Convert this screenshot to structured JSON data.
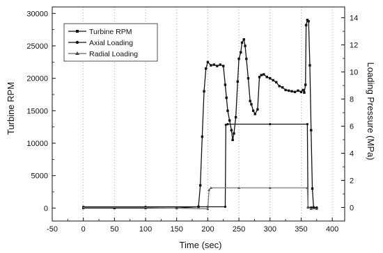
{
  "chart_data": {
    "type": "line",
    "title": "",
    "xlabel": "Time (sec)",
    "ylabel": "Turbine RPM",
    "y2label": "Loading Pressure (MPa)",
    "xlim": [
      -50,
      420
    ],
    "ylim": [
      -2000,
      31000
    ],
    "y2lim": [
      -1.0,
      14.8
    ],
    "xticks": [
      -50,
      0,
      50,
      100,
      150,
      200,
      250,
      300,
      350,
      400
    ],
    "yticks": [
      0,
      5000,
      10000,
      15000,
      20000,
      25000,
      30000
    ],
    "y2ticks": [
      0,
      2,
      4,
      6,
      8,
      10,
      12,
      14
    ],
    "grid": "vertical dotted",
    "legend_position": "top-left",
    "series": [
      {
        "name": "Turbine RPM",
        "axis": "left",
        "marker": "square",
        "x": [
          0,
          50,
          100,
          150,
          185,
          188,
          191,
          194,
          197,
          200,
          205,
          210,
          215,
          220,
          225,
          228,
          230,
          232,
          235,
          238,
          240,
          242,
          245,
          248,
          250,
          253,
          255,
          258,
          260,
          262,
          265,
          268,
          270,
          273,
          276,
          280,
          283,
          286,
          290,
          295,
          300,
          305,
          310,
          315,
          320,
          325,
          330,
          335,
          340,
          345,
          350,
          353,
          355,
          357,
          358,
          360,
          362,
          364,
          366,
          368,
          370,
          375
        ],
        "y": [
          0,
          0,
          0,
          0,
          200,
          3500,
          11000,
          18000,
          21500,
          22500,
          22000,
          22100,
          21900,
          22100,
          21900,
          19000,
          17000,
          15000,
          13500,
          12000,
          10500,
          11500,
          14000,
          19500,
          23000,
          24000,
          25500,
          26000,
          25000,
          23000,
          20000,
          16500,
          16000,
          15000,
          14500,
          15200,
          20200,
          20500,
          20600,
          20200,
          20000,
          19700,
          19400,
          18800,
          18600,
          18200,
          18100,
          18000,
          17900,
          18100,
          17900,
          18200,
          17800,
          19000,
          28200,
          29000,
          28800,
          22000,
          12000,
          3000,
          100,
          0
        ]
      },
      {
        "name": "Axial Loading",
        "axis": "right",
        "marker": "circle",
        "x": [
          0,
          100,
          200,
          228,
          229,
          232,
          300,
          360,
          361,
          366,
          375
        ],
        "y": [
          0.05,
          0.05,
          0.05,
          0.05,
          6.1,
          6.15,
          6.15,
          6.15,
          0.0,
          0.0,
          0.0
        ]
      },
      {
        "name": "Radial Loading",
        "axis": "right",
        "marker": "triangle",
        "x": [
          0,
          100,
          200,
          202,
          205,
          250,
          300,
          360,
          361,
          366,
          375
        ],
        "y": [
          0.0,
          0.0,
          -0.1,
          1.3,
          1.45,
          1.45,
          1.45,
          1.45,
          0.0,
          -0.1,
          -0.1
        ]
      }
    ]
  }
}
